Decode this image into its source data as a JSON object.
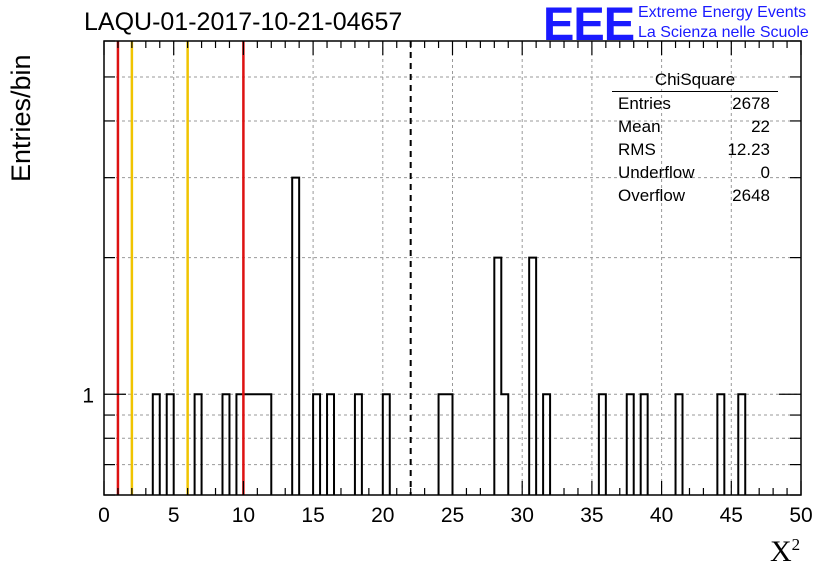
{
  "title": "LAQU-01-2017-10-21-04657",
  "logo": {
    "mark": "EEE",
    "line1": "Extreme Energy Events",
    "line2": "La Scienza nelle Scuole"
  },
  "axis": {
    "ylabel": "Entries/bin",
    "xlabel": "X",
    "xlabel_sup": "2"
  },
  "stats": {
    "title": "ChiSquare",
    "rows": [
      {
        "label": "Entries",
        "value": "2678"
      },
      {
        "label": "Mean",
        "value": "22"
      },
      {
        "label": "RMS",
        "value": "12.23"
      },
      {
        "label": "Underflow",
        "value": "0"
      },
      {
        "label": "Overflow",
        "value": "2648"
      }
    ]
  },
  "colors": {
    "red_line": "#dd1111",
    "yellow_line": "#f0c400",
    "logo": "#1a1aff"
  },
  "chart_data": {
    "type": "bar",
    "xlim": [
      0,
      50
    ],
    "x_ticks": [
      0,
      5,
      10,
      15,
      20,
      25,
      30,
      35,
      40,
      45,
      50
    ],
    "y_scale": "log",
    "y_tick_labels": [
      "1"
    ],
    "grid": true,
    "bin_width": 0.5,
    "bins": [
      {
        "x": 3.5,
        "y": 1
      },
      {
        "x": 4.5,
        "y": 1
      },
      {
        "x": 6.5,
        "y": 1
      },
      {
        "x": 8.5,
        "y": 1
      },
      {
        "x": 9.5,
        "y": 1
      },
      {
        "x": 10.0,
        "y": 1
      },
      {
        "x": 10.5,
        "y": 1
      },
      {
        "x": 11.0,
        "y": 1
      },
      {
        "x": 11.5,
        "y": 1
      },
      {
        "x": 13.5,
        "y": 3
      },
      {
        "x": 15.0,
        "y": 1
      },
      {
        "x": 16.0,
        "y": 1
      },
      {
        "x": 18.0,
        "y": 1
      },
      {
        "x": 20.0,
        "y": 1
      },
      {
        "x": 24.0,
        "y": 1
      },
      {
        "x": 24.5,
        "y": 1
      },
      {
        "x": 28.0,
        "y": 2
      },
      {
        "x": 28.5,
        "y": 1
      },
      {
        "x": 30.5,
        "y": 2
      },
      {
        "x": 31.5,
        "y": 1
      },
      {
        "x": 35.5,
        "y": 1
      },
      {
        "x": 37.5,
        "y": 1
      },
      {
        "x": 38.5,
        "y": 1
      },
      {
        "x": 41.0,
        "y": 1
      },
      {
        "x": 44.0,
        "y": 1
      },
      {
        "x": 45.5,
        "y": 1
      }
    ],
    "vertical_lines": [
      {
        "x": 1,
        "color": "red"
      },
      {
        "x": 2,
        "color": "yellow"
      },
      {
        "x": 6,
        "color": "yellow"
      },
      {
        "x": 10,
        "color": "red"
      },
      {
        "x": 22,
        "color": "black-dashed"
      }
    ]
  }
}
